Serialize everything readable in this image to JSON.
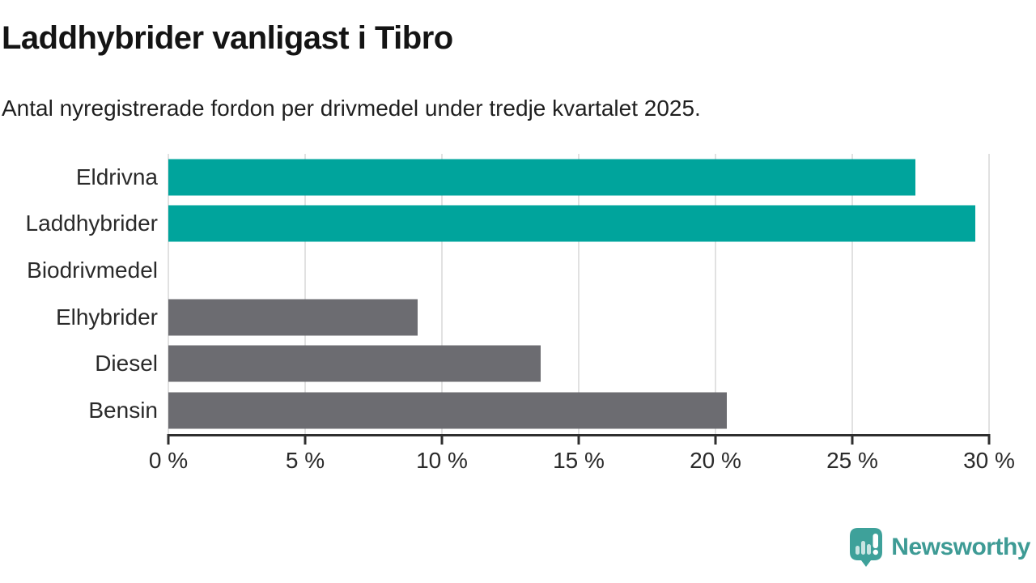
{
  "header": {
    "title": "Laddhybrider vanligast i Tibro",
    "subtitle": "Antal nyregistrerade fordon per drivmedel under tredje kvartalet 2025."
  },
  "chart_data": {
    "type": "bar",
    "orientation": "horizontal",
    "categories": [
      "Eldrivna",
      "Laddhybrider",
      "Biodrivmedel",
      "Elhybrider",
      "Diesel",
      "Bensin"
    ],
    "values": [
      27.3,
      29.5,
      0,
      9.1,
      13.6,
      20.4
    ],
    "unit": "%",
    "bar_colors": [
      "#00A49C",
      "#00A49C",
      "#6C6C71",
      "#6C6C71",
      "#6C6C71",
      "#6C6C71"
    ],
    "highlight_color": "#00A49C",
    "default_color": "#6C6C71",
    "xlim": [
      0,
      30
    ],
    "x_ticks": [
      0,
      5,
      10,
      15,
      20,
      25,
      30
    ],
    "x_tick_labels": [
      "0 %",
      "5 %",
      "10 %",
      "15 %",
      "20 %",
      "25 %",
      "30 %"
    ],
    "grid": true,
    "legend": false,
    "gridline_color": "#E1E1E1",
    "axis_color": "#2E2E2E"
  },
  "branding": {
    "name": "Newsworthy",
    "logo_icon": "newsworthy-speech-bubble-chart-icon",
    "color": "#3E9B95"
  }
}
